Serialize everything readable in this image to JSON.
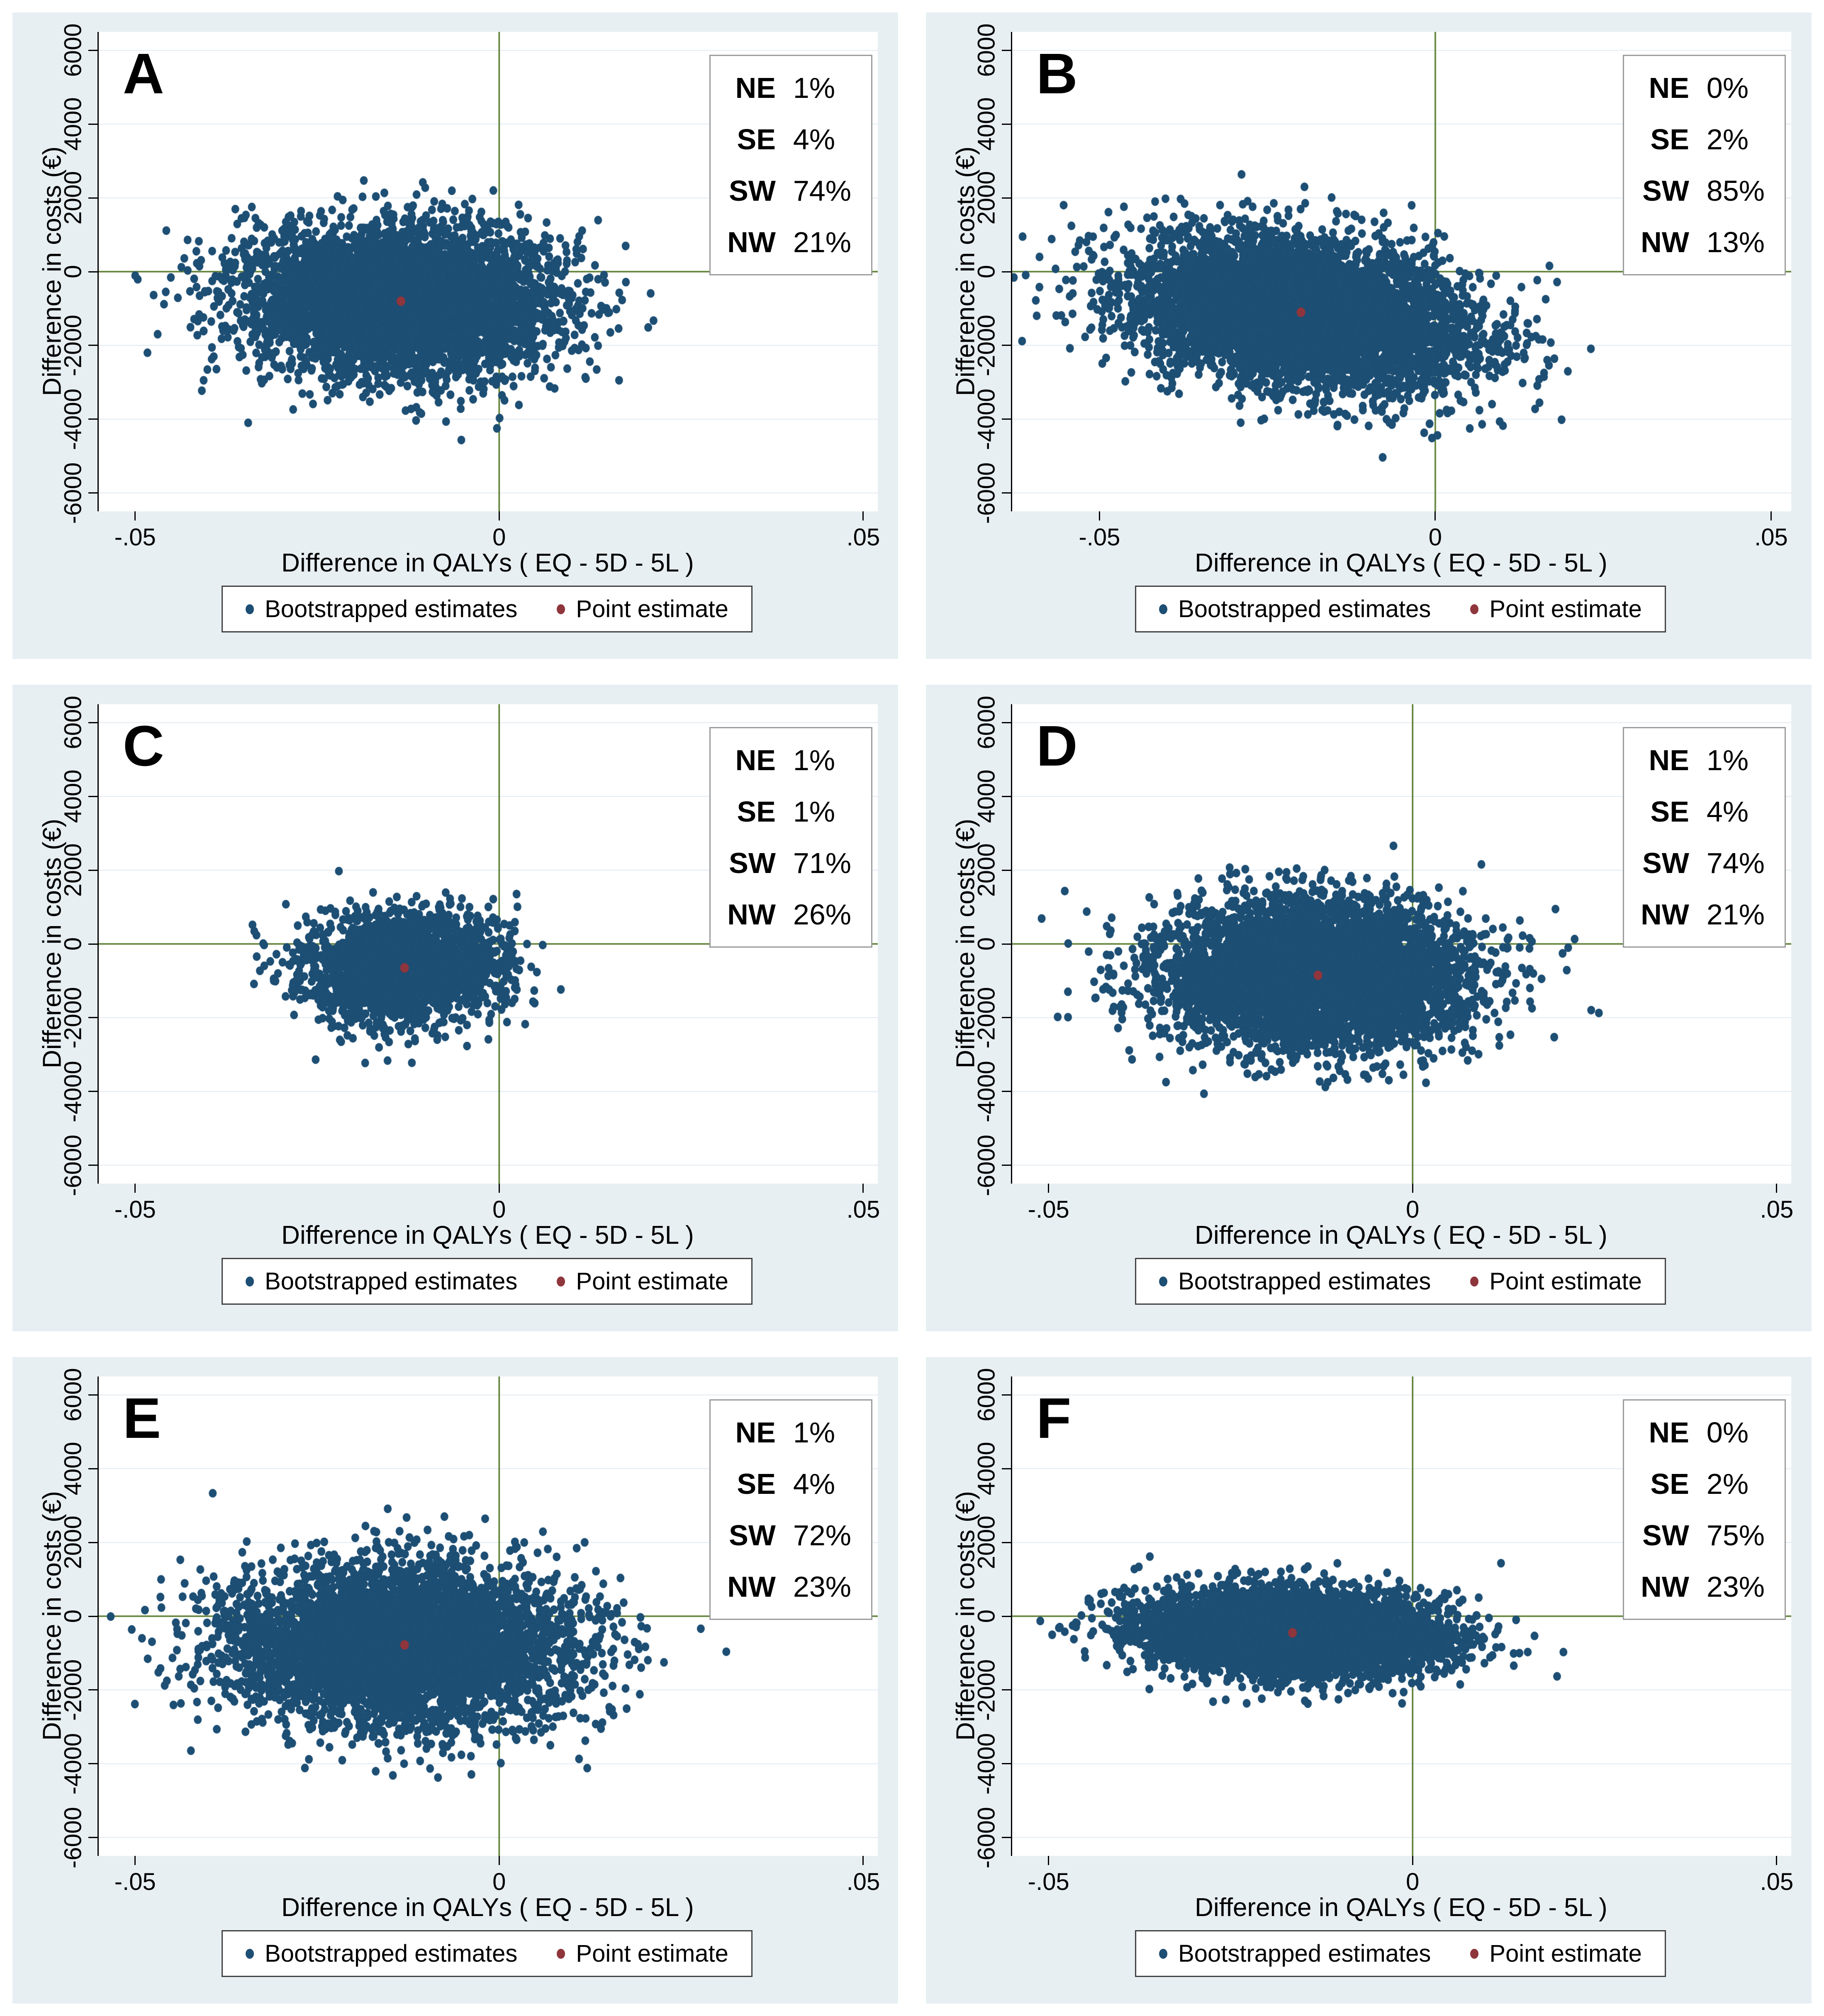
{
  "figure": {
    "description": "Cost-effectiveness planes: bootstrapped estimates of difference in costs versus difference in QALYs (EQ-5D-5L), panels A to F",
    "rows": 3,
    "cols": 2
  },
  "axes": {
    "x_title": "Difference in QALYs ( EQ - 5D - 5L )",
    "y_title": "Difference in costs (€)",
    "x_tick_labels": [
      "-.05",
      "0",
      ".05"
    ],
    "x_tick_values": [
      -0.05,
      0,
      0.05
    ],
    "y_tick_labels": [
      "-6000",
      "-4000",
      "-2000",
      "0",
      "2000",
      "4000",
      "6000"
    ],
    "y_tick_values": [
      -6000,
      -4000,
      -2000,
      0,
      2000,
      4000,
      6000
    ],
    "quad_labels": [
      "NE",
      "SE",
      "SW",
      "NW"
    ],
    "grid": "horizontal gridlines at y ticks",
    "reference_lines": {
      "x": 0,
      "y": 0
    }
  },
  "legend": {
    "bootstrapped": "Bootstrapped estimates",
    "point": "Point estimate"
  },
  "colors": {
    "panel_bg": "#e8eff3",
    "plot_bg": "#ffffff",
    "grid": "#dfeaf2",
    "axis": "#000000",
    "refline": "#587b2d",
    "navy": "#1d4e74",
    "maroon": "#8f353c",
    "quad_border": "#9b9b9b",
    "legend_border": "#3f3f3f"
  },
  "chart_data": [
    {
      "type": "scatter",
      "panel": "A",
      "quadrant_distribution": {
        "NE": "1%",
        "SE": "4%",
        "SW": "74%",
        "NW": "21%"
      },
      "point_estimate": {
        "x": -0.0135,
        "y": -800
      },
      "bootstrap_cloud": {
        "n": 5200,
        "center": [
          -0.0135,
          -800
        ],
        "sd": [
          0.0105,
          1000
        ],
        "corr": -0.05,
        "seed": 101,
        "x_range_approx": [
          -0.045,
          0.022
        ],
        "y_range_approx": [
          -4800,
          3400
        ]
      },
      "xlim": [
        -0.055,
        0.052
      ],
      "ylim": [
        -6500,
        6500
      ]
    },
    {
      "type": "scatter",
      "panel": "B",
      "quadrant_distribution": {
        "NE": "0%",
        "SE": "2%",
        "SW": "85%",
        "NW": "13%"
      },
      "point_estimate": {
        "x": -0.02,
        "y": -1100
      },
      "bootstrap_cloud": {
        "n": 6200,
        "center": [
          -0.02,
          -1100
        ],
        "sd": [
          0.0125,
          1000
        ],
        "corr": -0.28,
        "seed": 102,
        "x_range_approx": [
          -0.063,
          0.021
        ],
        "y_range_approx": [
          -4600,
          2900
        ]
      },
      "xlim": [
        -0.063,
        0.053
      ],
      "ylim": [
        -6500,
        6500
      ]
    },
    {
      "type": "scatter",
      "panel": "C",
      "quadrant_distribution": {
        "NE": "1%",
        "SE": "1%",
        "SW": "71%",
        "NW": "26%"
      },
      "point_estimate": {
        "x": -0.013,
        "y": -650
      },
      "bootstrap_cloud": {
        "n": 2300,
        "center": [
          -0.013,
          -650
        ],
        "sd": [
          0.0068,
          720
        ],
        "corr": 0.0,
        "seed": 103,
        "x_range_approx": [
          -0.038,
          0.01
        ],
        "y_range_approx": [
          -4000,
          3700
        ]
      },
      "xlim": [
        -0.055,
        0.052
      ],
      "ylim": [
        -6500,
        6500
      ]
    },
    {
      "type": "scatter",
      "panel": "D",
      "quadrant_distribution": {
        "NE": "1%",
        "SE": "4%",
        "SW": "74%",
        "NW": "21%"
      },
      "point_estimate": {
        "x": -0.013,
        "y": -850
      },
      "bootstrap_cloud": {
        "n": 5400,
        "center": [
          -0.013,
          -850
        ],
        "sd": [
          0.0105,
          1000
        ],
        "corr": -0.05,
        "seed": 104,
        "x_range_approx": [
          -0.044,
          0.02
        ],
        "y_range_approx": [
          -4200,
          4000
        ]
      },
      "xlim": [
        -0.055,
        0.052
      ],
      "ylim": [
        -6500,
        6500
      ]
    },
    {
      "type": "scatter",
      "panel": "E",
      "quadrant_distribution": {
        "NE": "1%",
        "SE": "4%",
        "SW": "72%",
        "NW": "23%"
      },
      "point_estimate": {
        "x": -0.013,
        "y": -780
      },
      "bootstrap_cloud": {
        "n": 5400,
        "center": [
          -0.013,
          -780
        ],
        "sd": [
          0.0115,
          1060
        ],
        "corr": -0.05,
        "seed": 105,
        "x_range_approx": [
          -0.047,
          0.022
        ],
        "y_range_approx": [
          -4400,
          3600
        ]
      },
      "xlim": [
        -0.055,
        0.052
      ],
      "ylim": [
        -6500,
        6500
      ]
    },
    {
      "type": "scatter",
      "panel": "F",
      "quadrant_distribution": {
        "NE": "0%",
        "SE": "2%",
        "SW": "75%",
        "NW": "23%"
      },
      "point_estimate": {
        "x": -0.0165,
        "y": -450
      },
      "bootstrap_cloud": {
        "n": 5200,
        "center": [
          -0.0165,
          -450
        ],
        "sd": [
          0.01,
          560
        ],
        "corr": -0.12,
        "seed": 106,
        "x_range_approx": [
          -0.045,
          0.016
        ],
        "y_range_approx": [
          -2400,
          2000
        ]
      },
      "xlim": [
        -0.055,
        0.052
      ],
      "ylim": [
        -6500,
        6500
      ]
    }
  ]
}
